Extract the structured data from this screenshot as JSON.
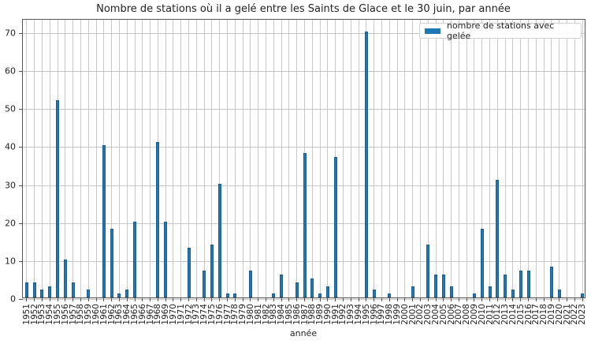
{
  "chart_data": {
    "type": "bar",
    "title": "Nombre de stations où il a gelé entre les Saints de Glace et le 30 juin, par année",
    "xlabel": "année",
    "ylabel": "",
    "ylim": [
      0,
      73.5
    ],
    "yticks": [
      0,
      10,
      20,
      30,
      40,
      50,
      60,
      70
    ],
    "grid": true,
    "legend_position": "upper right",
    "bar_color": "#1f77b4",
    "categories": [
      "1951",
      "1952",
      "1953",
      "1954",
      "1955",
      "1956",
      "1957",
      "1958",
      "1959",
      "1960",
      "1961",
      "1962",
      "1963",
      "1964",
      "1965",
      "1966",
      "1967",
      "1968",
      "1969",
      "1970",
      "1971",
      "1972",
      "1973",
      "1974",
      "1975",
      "1976",
      "1977",
      "1978",
      "1979",
      "1980",
      "1981",
      "1982",
      "1983",
      "1984",
      "1985",
      "1986",
      "1987",
      "1988",
      "1989",
      "1990",
      "1991",
      "1992",
      "1993",
      "1994",
      "1995",
      "1996",
      "1997",
      "1998",
      "1999",
      "2000",
      "2001",
      "2002",
      "2003",
      "2004",
      "2005",
      "2006",
      "2007",
      "2008",
      "2009",
      "2010",
      "2011",
      "2012",
      "2013",
      "2014",
      "2015",
      "2016",
      "2017",
      "2018",
      "2019",
      "2020",
      "2021",
      "2022",
      "2023"
    ],
    "series": [
      {
        "name": "nombre de stations avec gelée",
        "values": [
          4,
          4,
          2,
          3,
          52,
          10,
          4,
          0,
          2,
          0,
          40,
          18,
          1,
          2,
          20,
          0,
          0,
          41,
          20,
          0,
          0,
          13,
          0,
          7,
          14,
          30,
          1,
          1,
          0,
          7,
          0,
          0,
          1,
          6,
          0,
          4,
          38,
          5,
          1,
          3,
          37,
          0,
          0,
          0,
          70,
          2,
          0,
          1,
          0,
          0,
          3,
          0,
          14,
          6,
          6,
          3,
          0,
          0,
          1,
          18,
          3,
          31,
          6,
          2,
          7,
          7,
          0,
          0,
          8,
          2,
          0,
          0,
          1
        ]
      }
    ]
  }
}
